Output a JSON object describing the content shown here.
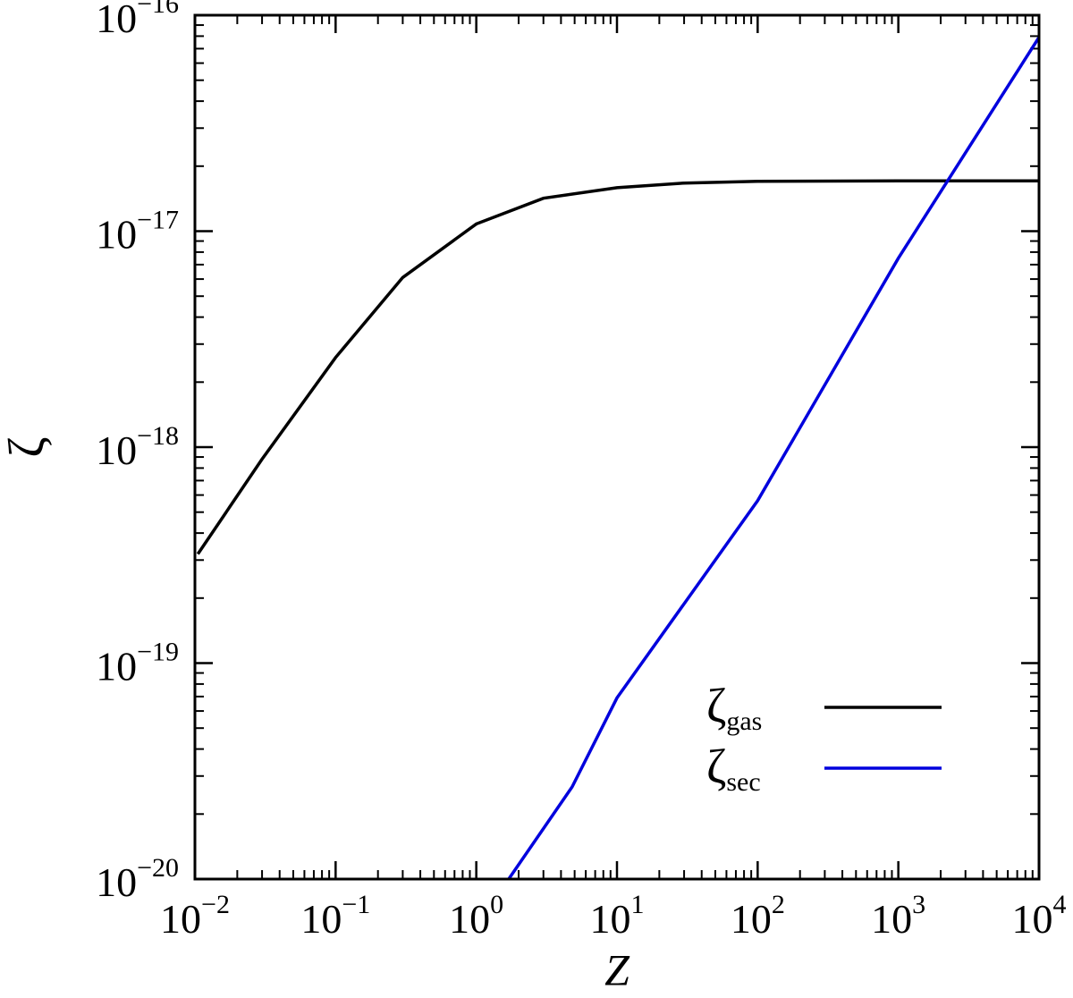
{
  "chart_data": {
    "type": "line",
    "xlabel": "Z",
    "ylabel": "ζ",
    "log_x": true,
    "log_y": true,
    "xlim": [
      0.01,
      10000
    ],
    "ylim": [
      1e-20,
      1e-16
    ],
    "xticks": [
      {
        "value": 0.01,
        "label": "10−2"
      },
      {
        "value": 0.1,
        "label": "10−1"
      },
      {
        "value": 1,
        "label": "100"
      },
      {
        "value": 10,
        "label": "101"
      },
      {
        "value": 100,
        "label": "102"
      },
      {
        "value": 1000,
        "label": "103"
      },
      {
        "value": 10000,
        "label": "104"
      }
    ],
    "yticks": [
      {
        "value": 1e-20,
        "label": "10−20"
      },
      {
        "value": 1e-19,
        "label": "10−19"
      },
      {
        "value": 1e-18,
        "label": "10−18"
      },
      {
        "value": 1e-17,
        "label": "10−17"
      },
      {
        "value": 1e-16,
        "label": "10−16"
      }
    ],
    "legend": "lower right",
    "series": [
      {
        "name": "ζgas",
        "color": "#000000",
        "x": [
          0.0105,
          0.03,
          0.1,
          0.3,
          1,
          3,
          10,
          30,
          100,
          1000,
          10000
        ],
        "values": [
          3.2e-19,
          8.8e-19,
          2.6e-18,
          6.1e-18,
          1.08e-17,
          1.42e-17,
          1.59e-17,
          1.67e-17,
          1.7e-17,
          1.71e-17,
          1.71e-17
        ]
      },
      {
        "name": "ζsec",
        "color": "#0000dd",
        "x": [
          1.7,
          4.8,
          10,
          100,
          1000,
          10000
        ],
        "values": [
          1e-20,
          2.67e-20,
          6.9e-20,
          5.65e-19,
          7.5e-18,
          7.9e-17
        ]
      }
    ]
  }
}
